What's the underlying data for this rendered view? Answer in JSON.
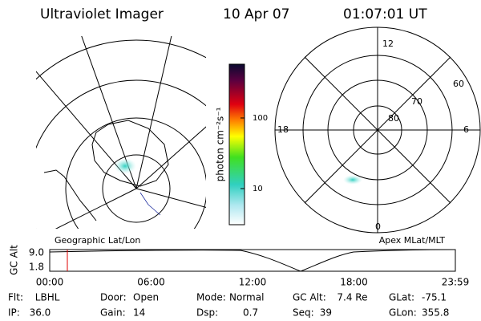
{
  "header": {
    "title": "Ultraviolet Imager",
    "date": "10 Apr 07",
    "time": "01:07:01 UT"
  },
  "colorbar": {
    "label": "photon cm⁻²s⁻¹",
    "ticks": [
      "100",
      "10"
    ]
  },
  "polar": {
    "mlt": [
      "12",
      "6",
      "0",
      "18"
    ],
    "mlat": [
      "60",
      "70",
      "80"
    ]
  },
  "timeline": {
    "left_label": "Geographic Lat/Lon",
    "right_label": "Apex MLat/MLT",
    "ylabel": "GC Alt",
    "yticks": [
      "9.0",
      "1.8"
    ],
    "xticks": [
      "00:00",
      "06:00",
      "12:00",
      "18:00",
      "23:59"
    ]
  },
  "info": [
    [
      [
        "Flt:",
        "LBHL"
      ],
      [
        "IP:",
        "36.0"
      ]
    ],
    [
      [
        "Door:",
        "Open"
      ],
      [
        "Gain:",
        "14"
      ]
    ],
    [
      [
        "Mode:",
        "Normal"
      ],
      [
        "Dsp:",
        "0.7"
      ]
    ],
    [
      [
        "GC Alt:",
        "7.4 Re"
      ],
      [
        "Seq:",
        "39"
      ]
    ],
    [
      [
        "GLat:",
        "-75.1"
      ],
      [
        "GLon:",
        "355.8"
      ]
    ]
  ]
}
